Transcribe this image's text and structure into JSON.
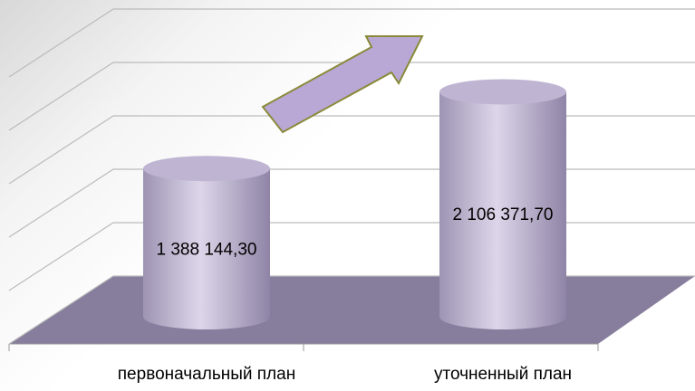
{
  "chart_data": {
    "type": "bar3d",
    "categories": [
      "первоначальный план",
      "уточненный план"
    ],
    "values": [
      1388144.3,
      2106371.7
    ],
    "value_labels": [
      "1 388 144,30",
      "2 106 371,70"
    ],
    "color": "#c9c0da",
    "ylim": [
      0,
      2500000
    ],
    "yticks": [
      0,
      500000,
      1000000,
      1500000,
      2000000,
      2500000
    ],
    "grid": true
  }
}
